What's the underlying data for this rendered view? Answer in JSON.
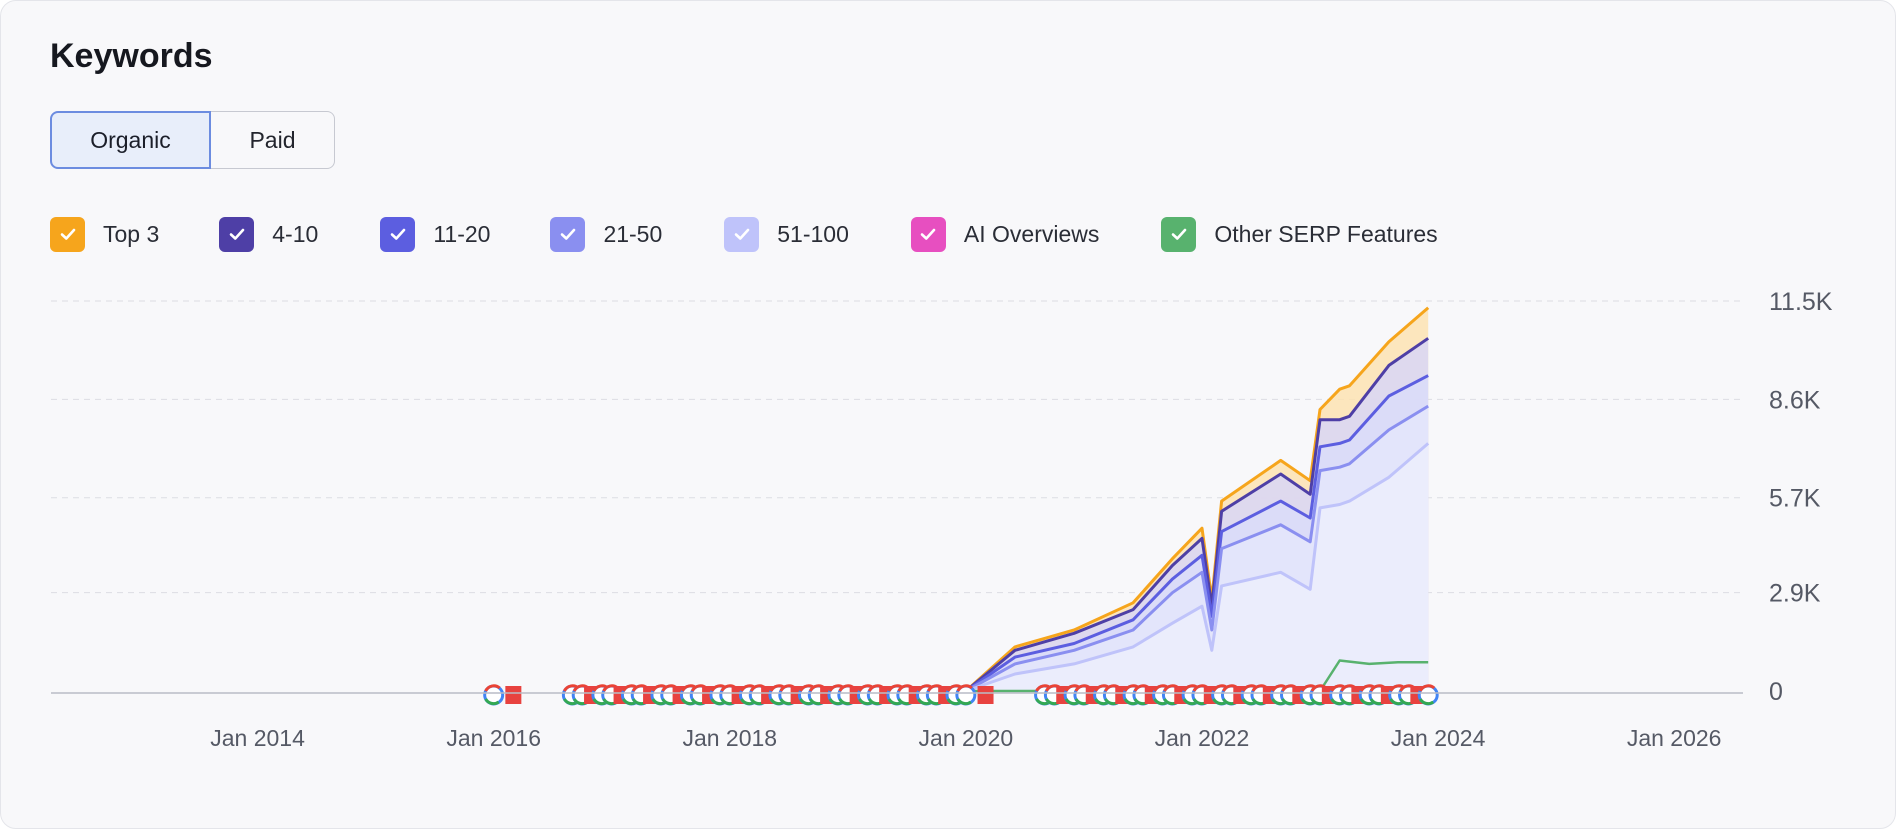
{
  "header": {
    "title": "Keywords"
  },
  "tabs": [
    {
      "label": "Organic",
      "active": true
    },
    {
      "label": "Paid",
      "active": false
    }
  ],
  "legend": [
    {
      "label": "Top 3",
      "color": "#f6a51c",
      "checked": true,
      "icon": "check-icon"
    },
    {
      "label": "4-10",
      "color": "#4e3fa6",
      "checked": true,
      "icon": "check-icon"
    },
    {
      "label": "11-20",
      "color": "#5c5ee0",
      "checked": true,
      "icon": "check-icon"
    },
    {
      "label": "21-50",
      "color": "#8a8ff0",
      "checked": true,
      "icon": "check-icon"
    },
    {
      "label": "51-100",
      "color": "#bfc3fa",
      "checked": true,
      "icon": "check-icon"
    },
    {
      "label": "AI Overviews",
      "color": "#e74fc0",
      "checked": true,
      "icon": "check-icon"
    },
    {
      "label": "Other SERP Features",
      "color": "#58b26e",
      "checked": true,
      "icon": "check-icon"
    }
  ],
  "chart_data": {
    "type": "area",
    "stacked": true,
    "x_ticks": [
      "Jan 2014",
      "Jan 2016",
      "Jan 2018",
      "Jan 2020",
      "Jan 2022",
      "Jan 2024",
      "Jan 2026"
    ],
    "y_ticks": [
      "11.5K",
      "8.6K",
      "5.7K",
      "2.9K",
      "0"
    ],
    "ylim": [
      0,
      11500
    ],
    "xlim": [
      "2012-04",
      "2026-08"
    ],
    "grid": true,
    "legend_placement": "top-left",
    "cumulative_series": [
      {
        "name": "Top 3",
        "color": "#f6a51c",
        "x": [
          "2020-01",
          "2020-06",
          "2020-12",
          "2021-06",
          "2021-10",
          "2022-01",
          "2022-02",
          "2022-03",
          "2022-09",
          "2022-12",
          "2023-01",
          "2023-03",
          "2023-04",
          "2023-08",
          "2023-12"
        ],
        "y": [
          0,
          1300,
          1800,
          2600,
          3900,
          4800,
          2700,
          5600,
          6800,
          6200,
          8300,
          8900,
          9000,
          10300,
          11300
        ]
      },
      {
        "name": "4-10",
        "color": "#4e3fa6",
        "x": [
          "2020-01",
          "2020-06",
          "2020-12",
          "2021-06",
          "2021-10",
          "2022-01",
          "2022-02",
          "2022-03",
          "2022-09",
          "2022-12",
          "2023-01",
          "2023-03",
          "2023-04",
          "2023-08",
          "2023-12"
        ],
        "y": [
          0,
          1200,
          1700,
          2400,
          3700,
          4500,
          2500,
          5300,
          6400,
          5800,
          8000,
          8000,
          8100,
          9600,
          10400
        ]
      },
      {
        "name": "11-20",
        "color": "#5c5ee0",
        "x": [
          "2020-01",
          "2020-06",
          "2020-12",
          "2021-06",
          "2021-10",
          "2022-01",
          "2022-02",
          "2022-03",
          "2022-09",
          "2022-12",
          "2023-01",
          "2023-03",
          "2023-04",
          "2023-08",
          "2023-12"
        ],
        "y": [
          0,
          1000,
          1400,
          2100,
          3300,
          4000,
          2200,
          4700,
          5600,
          5100,
          7200,
          7300,
          7400,
          8700,
          9300
        ]
      },
      {
        "name": "21-50",
        "color": "#8a8ff0",
        "x": [
          "2020-01",
          "2020-06",
          "2020-12",
          "2021-06",
          "2021-10",
          "2022-01",
          "2022-02",
          "2022-03",
          "2022-09",
          "2022-12",
          "2023-01",
          "2023-03",
          "2023-04",
          "2023-08",
          "2023-12"
        ],
        "y": [
          0,
          800,
          1200,
          1800,
          2900,
          3500,
          1800,
          4200,
          4900,
          4400,
          6500,
          6600,
          6700,
          7700,
          8400
        ]
      },
      {
        "name": "51-100",
        "color": "#bfc3fa",
        "x": [
          "2020-01",
          "2020-06",
          "2020-12",
          "2021-06",
          "2021-10",
          "2022-01",
          "2022-02",
          "2022-03",
          "2022-09",
          "2022-12",
          "2023-01",
          "2023-03",
          "2023-04",
          "2023-08",
          "2023-12"
        ],
        "y": [
          0,
          500,
          800,
          1300,
          2000,
          2500,
          1200,
          3100,
          3500,
          3000,
          5400,
          5500,
          5600,
          6300,
          7300
        ]
      },
      {
        "name": "Other SERP Features",
        "color": "#58b26e",
        "x": [
          "2020-01",
          "2022-09",
          "2023-01",
          "2023-03",
          "2023-06",
          "2023-09",
          "2023-12"
        ],
        "y": [
          0,
          0,
          0,
          900,
          800,
          850,
          850
        ]
      }
    ],
    "google_update_markers": [
      "2016-01",
      "2016-03",
      "2016-09",
      "2016-10",
      "2016-11",
      "2016-12",
      "2017-01",
      "2017-02",
      "2017-03",
      "2017-04",
      "2017-05",
      "2017-06",
      "2017-07",
      "2017-08",
      "2017-09",
      "2017-10",
      "2017-11",
      "2017-12",
      "2018-01",
      "2018-02",
      "2018-03",
      "2018-04",
      "2018-05",
      "2018-06",
      "2018-07",
      "2018-08",
      "2018-09",
      "2018-10",
      "2018-11",
      "2018-12",
      "2019-01",
      "2019-02",
      "2019-03",
      "2019-04",
      "2019-05",
      "2019-06",
      "2019-07",
      "2019-08",
      "2019-09",
      "2019-10",
      "2019-11",
      "2019-12",
      "2020-01",
      "2020-03",
      "2020-09",
      "2020-10",
      "2020-11",
      "2020-12",
      "2021-01",
      "2021-02",
      "2021-03",
      "2021-04",
      "2021-05",
      "2021-06",
      "2021-07",
      "2021-08",
      "2021-09",
      "2021-10",
      "2021-11",
      "2021-12",
      "2022-01",
      "2022-02",
      "2022-03",
      "2022-04",
      "2022-05",
      "2022-06",
      "2022-07",
      "2022-08",
      "2022-09",
      "2022-10",
      "2022-11",
      "2022-12",
      "2023-01",
      "2023-02",
      "2023-03",
      "2023-04",
      "2023-05",
      "2023-06",
      "2023-07",
      "2023-08",
      "2023-09",
      "2023-10",
      "2023-11",
      "2023-12"
    ]
  }
}
